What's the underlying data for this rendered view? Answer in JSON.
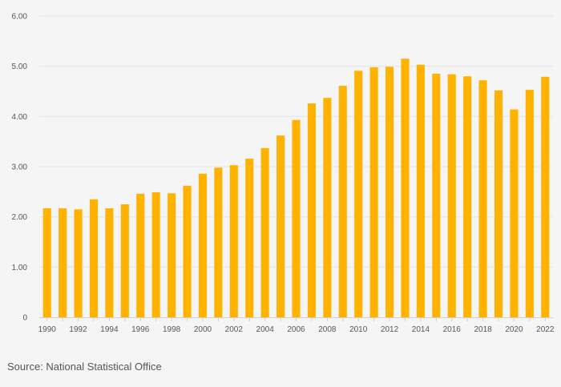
{
  "chart_data": {
    "type": "bar",
    "title": "",
    "xlabel": "",
    "ylabel": "",
    "ylim": [
      0,
      6
    ],
    "yticks": [
      0,
      1,
      2,
      3,
      4,
      5,
      6
    ],
    "ytick_labels": [
      "0",
      "1.00",
      "2.00",
      "3.00",
      "4.00",
      "5.00",
      "6.00"
    ],
    "grid": true,
    "categories": [
      "1990",
      "1991",
      "1992",
      "1993",
      "1994",
      "1995",
      "1996",
      "1997",
      "1998",
      "1999",
      "2000",
      "2001",
      "2002",
      "2003",
      "2004",
      "2005",
      "2006",
      "2007",
      "2008",
      "2009",
      "2010",
      "2011",
      "2012",
      "2013",
      "2014",
      "2015",
      "2016",
      "2017",
      "2018",
      "2019",
      "2020",
      "2021",
      "2022"
    ],
    "xtick_labels": [
      "1990",
      "1992",
      "1994",
      "1996",
      "1998",
      "2000",
      "2002",
      "2004",
      "2006",
      "2008",
      "2010",
      "2012",
      "2014",
      "2016",
      "2018",
      "2020",
      "2022"
    ],
    "values": [
      2.17,
      2.17,
      2.15,
      2.35,
      2.17,
      2.25,
      2.46,
      2.49,
      2.47,
      2.62,
      2.86,
      2.98,
      3.03,
      3.16,
      3.37,
      3.62,
      3.93,
      4.26,
      4.37,
      4.61,
      4.91,
      4.98,
      4.99,
      5.15,
      5.03,
      4.85,
      4.84,
      4.8,
      4.72,
      4.52,
      4.14,
      4.53,
      4.79
    ],
    "bar_color": "#FFB300"
  },
  "source": "Source: National Statistical Office",
  "colors": {
    "background": "#f5f5f5",
    "grid": "#e3e3e3",
    "axis": "#d0d0d0",
    "text": "#555555"
  }
}
